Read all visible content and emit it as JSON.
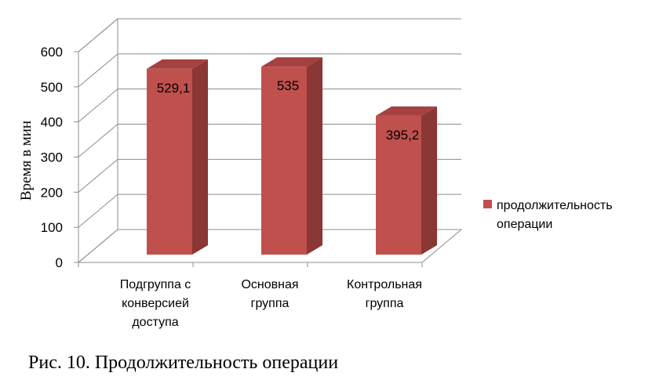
{
  "chart_data": {
    "type": "bar",
    "categories": [
      [
        "Подгруппа с",
        "конверсией",
        "доступа"
      ],
      [
        "Основная",
        "группа"
      ],
      [
        "Контрольная",
        "группа"
      ]
    ],
    "series": [
      {
        "name": "продолжительность операции",
        "values": [
          529.1,
          535,
          395.2
        ],
        "value_labels": [
          "529,1",
          "535",
          "395,2"
        ],
        "color": "#c0504d"
      }
    ],
    "ylabel": "Время в мин",
    "yticks": [
      "0",
      "100",
      "200",
      "300",
      "400",
      "500",
      "600"
    ],
    "ylim": [
      0,
      600
    ],
    "grid": true,
    "legend": "right",
    "style": "3d-column"
  },
  "legend_lines": [
    "продолжительность",
    "операции"
  ],
  "caption": "Рис. 10. Продолжительность  операции"
}
